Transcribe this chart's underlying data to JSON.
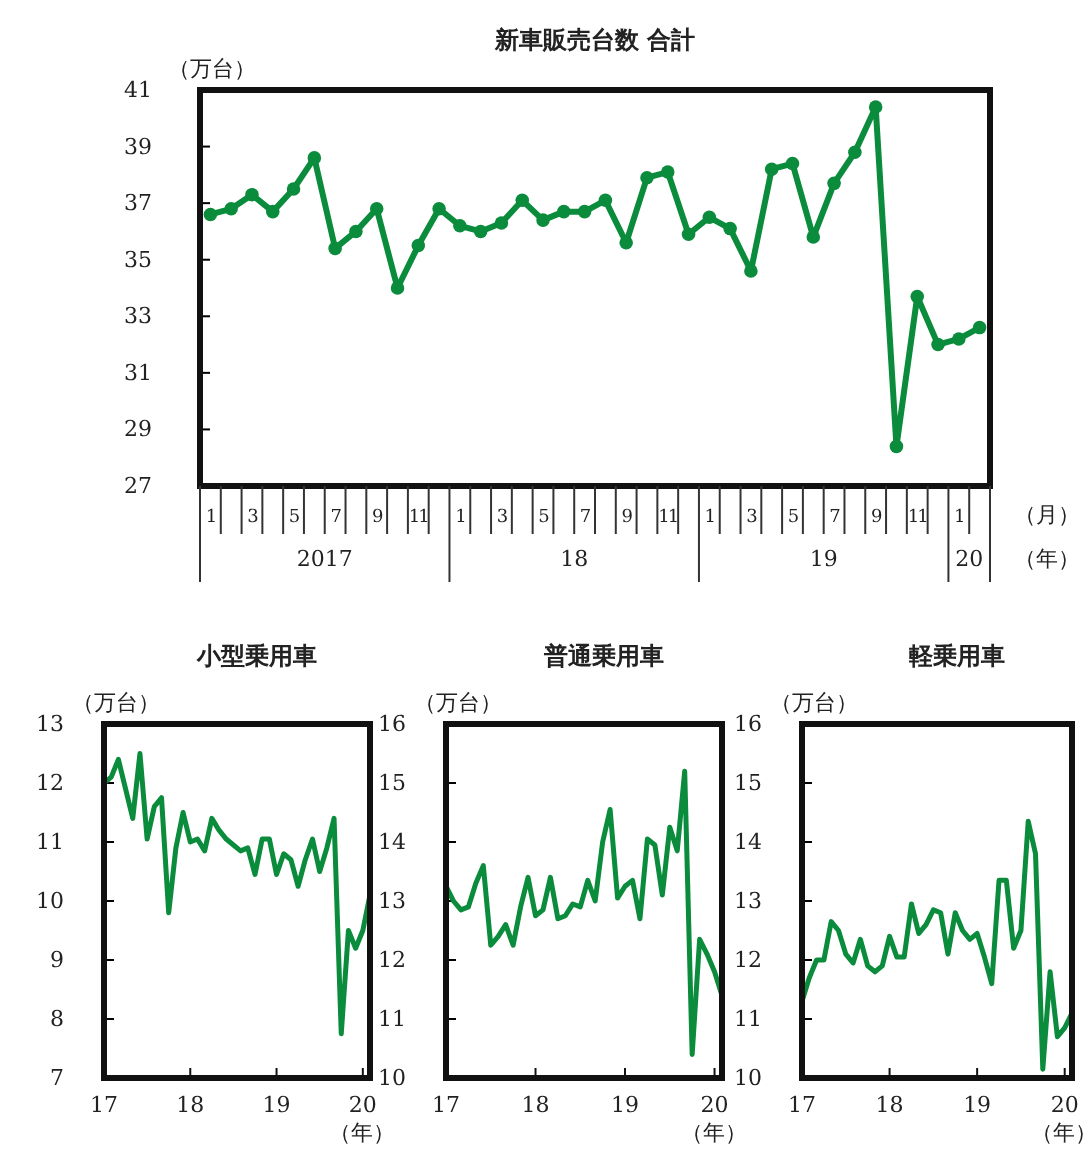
{
  "chart_data": [
    {
      "type": "line",
      "title": "新車販売台数 合計",
      "ylabel": "（万台）",
      "xlabel": "（月）",
      "color": "#0a8c3c",
      "marker": "circle",
      "categories": [
        "1",
        null,
        "3",
        null,
        "5",
        null,
        "7",
        null,
        "9",
        null,
        "11",
        null,
        "1",
        null,
        "3",
        null,
        "5",
        null,
        "7",
        null,
        "9",
        null,
        "11",
        null,
        "1",
        null,
        "3",
        null,
        "5",
        null,
        "7",
        null,
        "9",
        null,
        "11",
        null,
        "1",
        null
      ],
      "values": [
        36.6,
        36.8,
        37.3,
        36.7,
        37.5,
        38.6,
        35.4,
        36.0,
        36.8,
        34.0,
        35.5,
        36.8,
        36.2,
        36.0,
        36.3,
        37.1,
        36.4,
        36.7,
        36.7,
        37.1,
        35.6,
        37.9,
        38.1,
        35.9,
        36.5,
        36.1,
        34.6,
        38.2,
        38.4,
        35.8,
        37.7,
        38.8,
        40.4,
        28.4,
        33.7,
        32.0,
        32.2,
        32.6
      ],
      "ylim": [
        27,
        41
      ],
      "yticks": [
        27,
        29,
        31,
        33,
        35,
        37,
        39,
        41
      ],
      "annotations": [
        "2017",
        "18",
        "19",
        "20",
        "（年）"
      ]
    },
    {
      "type": "line",
      "title": "小型乗用車",
      "ylabel": "（万台）",
      "xlabel": "（年）",
      "color": "#0a8c3c",
      "categories": [
        "17",
        null,
        null,
        null,
        null,
        null,
        null,
        null,
        null,
        null,
        null,
        null,
        "18",
        null,
        null,
        null,
        null,
        null,
        null,
        null,
        null,
        null,
        null,
        null,
        "19",
        null,
        null,
        null,
        null,
        null,
        null,
        null,
        null,
        null,
        null,
        null,
        "20",
        null
      ],
      "values": [
        12.0,
        12.1,
        12.4,
        11.9,
        11.4,
        12.5,
        11.05,
        11.6,
        11.75,
        9.8,
        10.9,
        11.5,
        11.0,
        11.05,
        10.85,
        11.4,
        11.2,
        11.05,
        10.95,
        10.85,
        10.9,
        10.45,
        11.05,
        11.05,
        10.45,
        10.8,
        10.7,
        10.25,
        10.7,
        11.05,
        10.5,
        10.9,
        11.4,
        7.75,
        9.5,
        9.2,
        9.5,
        10.1
      ],
      "ylim": [
        7,
        13
      ],
      "yticks": [
        7,
        8,
        9,
        10,
        11,
        12,
        13
      ]
    },
    {
      "type": "line",
      "title": "普通乗用車",
      "ylabel": "（万台）",
      "xlabel": "（年）",
      "color": "#0a8c3c",
      "categories": [
        "17",
        null,
        null,
        null,
        null,
        null,
        null,
        null,
        null,
        null,
        null,
        null,
        "18",
        null,
        null,
        null,
        null,
        null,
        null,
        null,
        null,
        null,
        null,
        null,
        "19",
        null,
        null,
        null,
        null,
        null,
        null,
        null,
        null,
        null,
        null,
        null,
        "20",
        null
      ],
      "values": [
        13.25,
        13.0,
        12.85,
        12.9,
        13.3,
        13.6,
        12.25,
        12.4,
        12.6,
        12.25,
        12.9,
        13.4,
        12.75,
        12.85,
        13.4,
        12.7,
        12.75,
        12.95,
        12.9,
        13.35,
        13.0,
        14.0,
        14.55,
        13.05,
        13.25,
        13.35,
        12.7,
        14.05,
        13.95,
        13.1,
        14.25,
        13.85,
        15.2,
        10.4,
        12.35,
        12.1,
        11.8,
        11.4
      ],
      "ylim": [
        10,
        16
      ],
      "yticks": [
        10,
        11,
        12,
        13,
        14,
        15,
        16
      ]
    },
    {
      "type": "line",
      "title": "軽乗用車",
      "ylabel": "（万台）",
      "xlabel": "（年）",
      "color": "#0a8c3c",
      "categories": [
        "17",
        null,
        null,
        null,
        null,
        null,
        null,
        null,
        null,
        null,
        null,
        null,
        "18",
        null,
        null,
        null,
        null,
        null,
        null,
        null,
        null,
        null,
        null,
        null,
        "19",
        null,
        null,
        null,
        null,
        null,
        null,
        null,
        null,
        null,
        null,
        null,
        "20",
        null
      ],
      "values": [
        11.3,
        11.7,
        12.0,
        12.0,
        12.65,
        12.5,
        12.1,
        11.95,
        12.35,
        11.9,
        11.8,
        11.9,
        12.4,
        12.05,
        12.05,
        12.95,
        12.45,
        12.6,
        12.85,
        12.8,
        12.1,
        12.8,
        12.5,
        12.35,
        12.45,
        12.05,
        11.6,
        13.35,
        13.35,
        12.2,
        12.5,
        14.35,
        13.8,
        10.15,
        11.8,
        10.7,
        10.85,
        11.1
      ],
      "ylim": [
        10,
        16
      ],
      "yticks": [
        10,
        11,
        12,
        13,
        14,
        15,
        16
      ]
    }
  ]
}
